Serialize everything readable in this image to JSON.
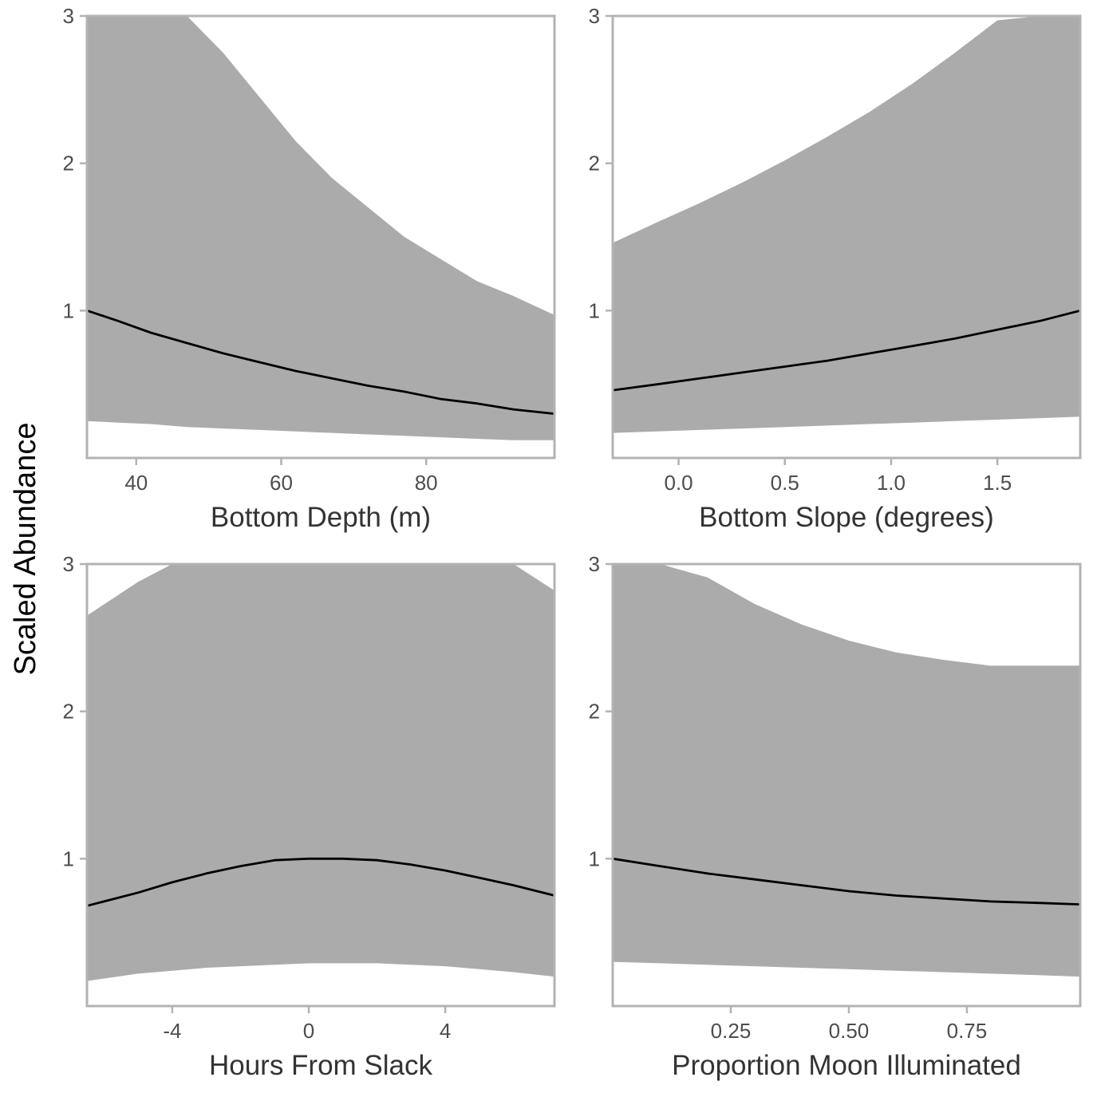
{
  "y_axis_title": "Scaled Abundance",
  "colors": {
    "band": "#ababab",
    "line": "#000000",
    "frame": "#b3b3b3",
    "tick_text": "#4d4d4d"
  },
  "chart_data": [
    {
      "type": "line",
      "xlabel": "Bottom Depth (m)",
      "ylabel": "Scaled Abundance",
      "xlim": [
        33.2,
        97.7
      ],
      "ylim": [
        0,
        3
      ],
      "xticks": [
        40,
        60,
        80
      ],
      "yticks": [
        1,
        2,
        3
      ],
      "grid": false,
      "series": [
        {
          "x": [
            33.2,
            37.5,
            42,
            47,
            52,
            57,
            62,
            67,
            72,
            77,
            82,
            87,
            92,
            97.7
          ],
          "y": [
            1.0,
            0.93,
            0.85,
            0.78,
            0.71,
            0.65,
            0.59,
            0.54,
            0.49,
            0.45,
            0.4,
            0.37,
            0.33,
            0.3
          ],
          "lower": [
            0.25,
            0.24,
            0.23,
            0.21,
            0.2,
            0.19,
            0.18,
            0.17,
            0.16,
            0.15,
            0.14,
            0.13,
            0.12,
            0.12
          ],
          "upper": [
            3.0,
            3.0,
            3.0,
            3.0,
            2.75,
            2.45,
            2.15,
            1.9,
            1.7,
            1.5,
            1.35,
            1.2,
            1.1,
            0.97
          ]
        }
      ]
    },
    {
      "type": "line",
      "xlabel": "Bottom Slope (degrees)",
      "ylabel": "Scaled Abundance",
      "xlim": [
        -0.31,
        1.89
      ],
      "ylim": [
        0,
        3
      ],
      "xticks": [
        "0.0",
        "0.5",
        "1.0",
        "1.5"
      ],
      "yticks": [
        1,
        2,
        3
      ],
      "grid": false,
      "series": [
        {
          "x": [
            -0.31,
            -0.1,
            0.1,
            0.3,
            0.5,
            0.7,
            0.9,
            1.1,
            1.3,
            1.5,
            1.7,
            1.89
          ],
          "y": [
            0.46,
            0.5,
            0.54,
            0.58,
            0.62,
            0.66,
            0.71,
            0.76,
            0.81,
            0.87,
            0.93,
            1.0
          ],
          "lower": [
            0.17,
            0.18,
            0.19,
            0.2,
            0.21,
            0.22,
            0.23,
            0.24,
            0.25,
            0.26,
            0.27,
            0.28
          ],
          "upper": [
            1.46,
            1.6,
            1.73,
            1.87,
            2.02,
            2.18,
            2.35,
            2.54,
            2.75,
            2.97,
            3.0,
            3.0
          ]
        }
      ]
    },
    {
      "type": "line",
      "xlabel": "Hours From Slack",
      "ylabel": "Scaled Abundance",
      "xlim": [
        -6.5,
        7.2
      ],
      "ylim": [
        0,
        3
      ],
      "xticks": [
        -4,
        0,
        4
      ],
      "yticks": [
        1,
        2,
        3
      ],
      "grid": false,
      "series": [
        {
          "x": [
            -6.5,
            -5,
            -4,
            -3,
            -2,
            -1,
            0,
            1,
            2,
            3,
            4,
            5,
            6,
            7.2
          ],
          "y": [
            0.68,
            0.77,
            0.84,
            0.9,
            0.95,
            0.99,
            1.0,
            1.0,
            0.99,
            0.96,
            0.92,
            0.87,
            0.82,
            0.75
          ],
          "lower": [
            0.17,
            0.22,
            0.24,
            0.26,
            0.27,
            0.28,
            0.29,
            0.29,
            0.29,
            0.28,
            0.27,
            0.25,
            0.23,
            0.2
          ],
          "upper": [
            2.65,
            2.88,
            3.0,
            3.0,
            3.0,
            3.0,
            3.0,
            3.0,
            3.0,
            3.0,
            3.0,
            3.0,
            3.0,
            2.82
          ]
        }
      ]
    },
    {
      "type": "line",
      "xlabel": "Proportion Moon Illuminated",
      "ylabel": "Scaled Abundance",
      "xlim": [
        0.0,
        0.99
      ],
      "ylim": [
        0,
        3
      ],
      "xticks": [
        "0.25",
        "0.50",
        "0.75"
      ],
      "yticks": [
        1,
        2,
        3
      ],
      "grid": false,
      "series": [
        {
          "x": [
            0.0,
            0.1,
            0.2,
            0.3,
            0.4,
            0.5,
            0.6,
            0.7,
            0.8,
            0.9,
            0.99
          ],
          "y": [
            1.0,
            0.95,
            0.9,
            0.86,
            0.82,
            0.78,
            0.75,
            0.73,
            0.71,
            0.7,
            0.69
          ],
          "lower": [
            0.3,
            0.29,
            0.28,
            0.27,
            0.26,
            0.25,
            0.24,
            0.23,
            0.22,
            0.21,
            0.2
          ],
          "upper": [
            3.0,
            3.0,
            2.91,
            2.73,
            2.59,
            2.48,
            2.4,
            2.35,
            2.31,
            2.31,
            2.31
          ]
        }
      ]
    }
  ]
}
